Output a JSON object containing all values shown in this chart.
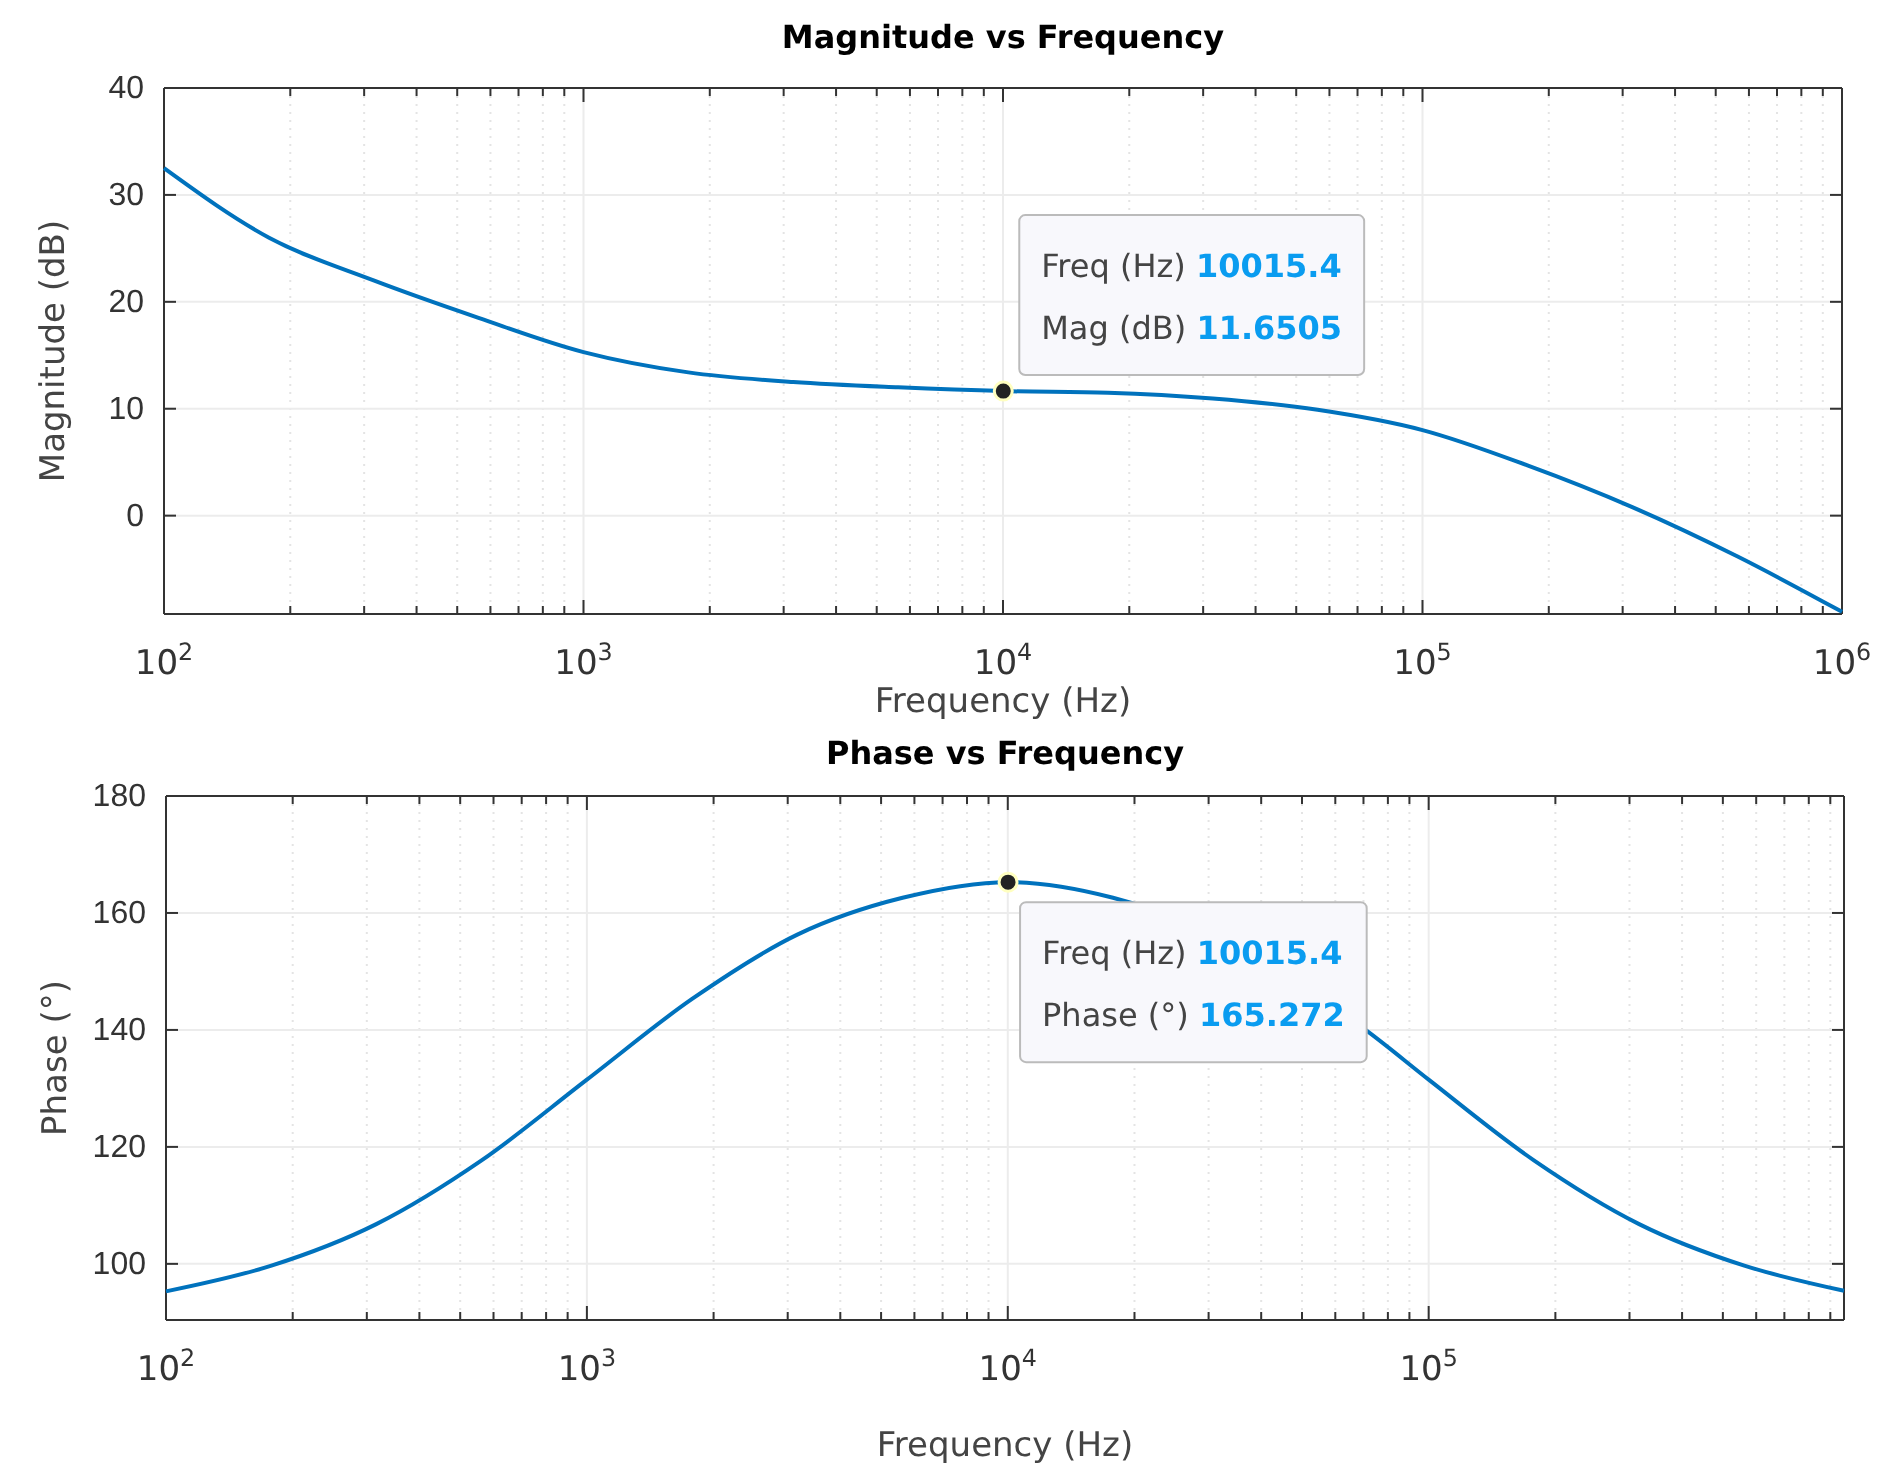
{
  "chart_data": [
    {
      "type": "line",
      "title": "Magnitude vs Frequency",
      "xlabel": "Frequency (Hz)",
      "ylabel": "Magnitude (dB)",
      "log": "x",
      "grid": true,
      "marker": "none",
      "line_style": "solid",
      "x": [
        100,
        178,
        316,
        562,
        1000,
        1778,
        3162,
        5623,
        10015.4,
        17783,
        31623,
        56234,
        100000,
        177828,
        316228,
        562341,
        1000000
      ],
      "series": [
        {
          "color": "#0072bd",
          "values": [
            32.5,
            26.0,
            22.0,
            18.5,
            15.3,
            13.4,
            12.5,
            12.0,
            11.6505,
            11.5,
            10.96,
            9.9,
            8.0,
            4.7,
            0.8,
            -3.8,
            -9.0
          ]
        }
      ],
      "xlim": [
        100,
        1000000
      ],
      "xticks": [
        {
          "value": 100,
          "label": "10$^{2}$"
        },
        {
          "value": 200,
          "label": null
        },
        {
          "value": 300,
          "label": null
        },
        {
          "value": 400,
          "label": null
        },
        {
          "value": 500,
          "label": null
        },
        {
          "value": 600,
          "label": null
        },
        {
          "value": 700,
          "label": null
        },
        {
          "value": 800,
          "label": null
        },
        {
          "value": 900,
          "label": null
        },
        {
          "value": 1000,
          "label": "10$^{3}$"
        },
        {
          "value": 2000,
          "label": null
        },
        {
          "value": 3000,
          "label": null
        },
        {
          "value": 4000,
          "label": null
        },
        {
          "value": 5000,
          "label": null
        },
        {
          "value": 6000,
          "label": null
        },
        {
          "value": 7000,
          "label": null
        },
        {
          "value": 8000,
          "label": null
        },
        {
          "value": 9000,
          "label": null
        },
        {
          "value": 10000,
          "label": "10$^{4}$"
        },
        {
          "value": 20000,
          "label": null
        },
        {
          "value": 30000,
          "label": null
        },
        {
          "value": 40000,
          "label": null
        },
        {
          "value": 50000,
          "label": null
        },
        {
          "value": 60000,
          "label": null
        },
        {
          "value": 70000,
          "label": null
        },
        {
          "value": 80000,
          "label": null
        },
        {
          "value": 90000,
          "label": null
        },
        {
          "value": 100000,
          "label": "10$^{5}$"
        },
        {
          "value": 200000,
          "label": null
        },
        {
          "value": 300000,
          "label": null
        },
        {
          "value": 400000,
          "label": null
        },
        {
          "value": 500000,
          "label": null
        },
        {
          "value": 600000,
          "label": null
        },
        {
          "value": 700000,
          "label": null
        },
        {
          "value": 800000,
          "label": null
        },
        {
          "value": 900000,
          "label": null
        },
        {
          "value": 1000000,
          "label": "10$^{6}$"
        }
      ],
      "ylim": [
        -9.2,
        40
      ],
      "yticks": [
        0,
        10,
        20,
        30,
        40
      ],
      "annotations": [
        {
          "text": "Freq (Hz) 10015.4\nMag (dB) 11.6505",
          "x": 10015.4,
          "y": 11.6505
        }
      ]
    },
    {
      "type": "line",
      "title": "Phase vs Frequency",
      "xlabel": "Frequency (Hz)",
      "ylabel": "Phase (°)",
      "log": "x",
      "grid": true,
      "marker": "none",
      "line_style": "solid",
      "x": [
        100,
        178,
        316,
        562,
        1000,
        1778,
        3162,
        5623,
        10015.4,
        17783,
        70795,
        100000,
        177828,
        316228,
        562341,
        970000
      ],
      "series": [
        {
          "color": "#0072bd",
          "values": [
            95.3,
            99.7,
            106.8,
            117.7,
            131.5,
            145.3,
            156.3,
            162.6,
            165.272,
            162.6,
            140,
            131.5,
            117.7,
            106.8,
            99.7,
            95.4
          ]
        }
      ],
      "xlim": [
        100,
        970000
      ],
      "xticks": [
        {
          "value": 100,
          "label": "10$^{2}$"
        },
        {
          "value": 200,
          "label": null
        },
        {
          "value": 300,
          "label": null
        },
        {
          "value": 400,
          "label": null
        },
        {
          "value": 500,
          "label": null
        },
        {
          "value": 600,
          "label": null
        },
        {
          "value": 700,
          "label": null
        },
        {
          "value": 800,
          "label": null
        },
        {
          "value": 900,
          "label": null
        },
        {
          "value": 1000,
          "label": "10$^{3}$"
        },
        {
          "value": 2000,
          "label": null
        },
        {
          "value": 3000,
          "label": null
        },
        {
          "value": 4000,
          "label": null
        },
        {
          "value": 5000,
          "label": null
        },
        {
          "value": 6000,
          "label": null
        },
        {
          "value": 7000,
          "label": null
        },
        {
          "value": 8000,
          "label": null
        },
        {
          "value": 9000,
          "label": null
        },
        {
          "value": 10000,
          "label": "10$^{4}$"
        },
        {
          "value": 20000,
          "label": null
        },
        {
          "value": 30000,
          "label": null
        },
        {
          "value": 40000,
          "label": null
        },
        {
          "value": 50000,
          "label": null
        },
        {
          "value": 60000,
          "label": null
        },
        {
          "value": 70000,
          "label": null
        },
        {
          "value": 80000,
          "label": null
        },
        {
          "value": 90000,
          "label": null
        },
        {
          "value": 100000,
          "label": "10$^{5}$"
        },
        {
          "value": 200000,
          "label": null
        },
        {
          "value": 300000,
          "label": null
        },
        {
          "value": 400000,
          "label": null
        },
        {
          "value": 500000,
          "label": null
        },
        {
          "value": 600000,
          "label": null
        },
        {
          "value": 700000,
          "label": null
        },
        {
          "value": 800000,
          "label": null
        },
        {
          "value": 900000,
          "label": null
        }
      ],
      "ylim": [
        90.4,
        180
      ],
      "yticks": [
        100,
        120,
        140,
        160,
        180
      ],
      "annotations": [
        {
          "text": "Freq (Hz) 10015.4\nPhase (°) 165.272",
          "x": 10015.4,
          "y": 165.272
        }
      ]
    }
  ]
}
